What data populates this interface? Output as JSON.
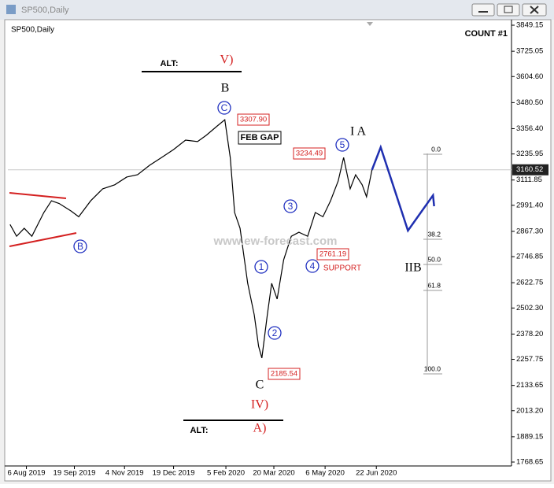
{
  "window": {
    "title": "SP500,Daily"
  },
  "chart_data": {
    "type": "line",
    "title": "SP500,Daily",
    "count_label": "COUNT #1",
    "series": [
      {
        "color": "#000000",
        "x": [
          "2019-07-22",
          "2019-07-28",
          "2019-08-04",
          "2019-08-11",
          "2019-08-22",
          "2019-08-29",
          "2019-09-05",
          "2019-09-16",
          "2019-09-23",
          "2019-10-04",
          "2019-10-15",
          "2019-10-26",
          "2019-11-06",
          "2019-11-16",
          "2019-11-27",
          "2019-12-08",
          "2019-12-19",
          "2019-12-30",
          "2020-01-10",
          "2020-01-18",
          "2020-01-28",
          "2020-02-04",
          "2020-02-09",
          "2020-02-13",
          "2020-02-18",
          "2020-02-25",
          "2020-03-02",
          "2020-03-06",
          "2020-03-09",
          "2020-03-14",
          "2020-03-18",
          "2020-03-23",
          "2020-03-29",
          "2020-04-05",
          "2020-04-12",
          "2020-04-20",
          "2020-04-27",
          "2020-05-04",
          "2020-05-11",
          "2020-05-18",
          "2020-05-23",
          "2020-05-29",
          "2020-06-03",
          "2020-06-09",
          "2020-06-13",
          "2020-06-18"
        ],
        "values": [
          2900,
          2844,
          2882,
          2844,
          2957,
          3013,
          3000,
          2964,
          2937,
          3013,
          3070,
          3089,
          3126,
          3137,
          3182,
          3219,
          3257,
          3302,
          3295,
          3325,
          3369,
          3399,
          3219,
          2957,
          2882,
          2620,
          2470,
          2320,
          2264,
          2470,
          2620,
          2545,
          2732,
          2844,
          2863,
          2844,
          2957,
          2937,
          3013,
          3107,
          3219,
          3070,
          3137,
          3089,
          3032,
          3160
        ]
      },
      {
        "color": "#1f2fb0",
        "x": [
          "2020-06-18",
          "2020-06-26",
          "2020-07-21",
          "2020-08-13",
          "2020-08-14"
        ],
        "values": [
          3160,
          3268,
          2871,
          3039,
          2987
        ]
      }
    ],
    "last_price": 3160.52,
    "xlim": [
      "2019-07-20",
      "2020-10-24"
    ],
    "xticks": [
      {
        "value": "2019-08-06",
        "label": "6 Aug 2019"
      },
      {
        "value": "2019-09-19",
        "label": "19 Sep 2019"
      },
      {
        "value": "2019-11-04",
        "label": "4 Nov 2019"
      },
      {
        "value": "2019-12-19",
        "label": "19 Dec 2019"
      },
      {
        "value": "2020-02-05",
        "label": "5 Feb 2020"
      },
      {
        "value": "2020-03-20",
        "label": "20 Mar 2020"
      },
      {
        "value": "2020-05-06",
        "label": "6 May 2020"
      },
      {
        "value": "2020-06-22",
        "label": "22 Jun 2020"
      }
    ],
    "ylim": [
      1750,
      3868
    ],
    "yticks": [
      3849.15,
      3725.05,
      {
        "value": 3604.6,
        "label": "3604.60"
      },
      {
        "value": 3480.5,
        "label": "3480.50"
      },
      {
        "value": 3356.4,
        "label": "3356.40"
      },
      3235.95,
      3111.85,
      {
        "value": 2991.4,
        "label": "2991.40"
      },
      {
        "value": 2867.3,
        "label": "2867.30"
      },
      2746.85,
      2622.75,
      {
        "value": 2502.3,
        "label": "2502.30"
      },
      {
        "value": 2378.2,
        "label": "2378.20"
      },
      2257.75,
      2133.65,
      {
        "value": 2013.2,
        "label": "2013.20"
      },
      1889.15,
      1768.65
    ],
    "annotations": [
      "ALT:",
      "V)",
      "B",
      "3307.90",
      "FEB GAP",
      "I A",
      "3234.49",
      "www.ew-forecast.com",
      "SUPPORT",
      "2761.19",
      "2185.54",
      "C",
      "IV)",
      "ALT:",
      "A)",
      "IIB"
    ],
    "wave_labels": [
      "C",
      "5",
      "3",
      "1",
      "4",
      "2",
      "B"
    ],
    "fib_levels": [
      "0.0",
      "38.2",
      "50.0",
      "61.8",
      "100.0"
    ]
  }
}
